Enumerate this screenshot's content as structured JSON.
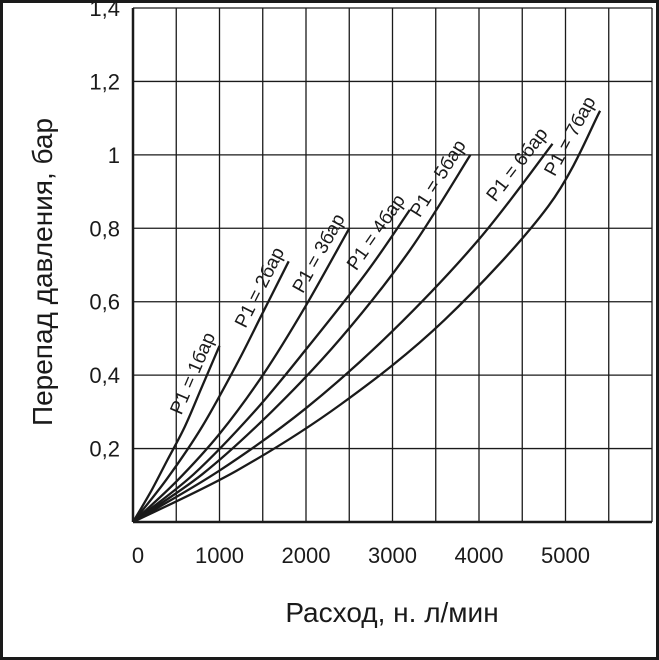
{
  "chart_data": {
    "type": "line",
    "title": "",
    "xlabel": "Расход, н. л/мин",
    "ylabel": "Перепад давления, бар",
    "xlim": [
      0,
      6000
    ],
    "ylim": [
      0,
      1.4
    ],
    "x_ticks": [
      0,
      1000,
      2000,
      3000,
      4000,
      5000
    ],
    "x_tick_labels": [
      "0",
      "1000",
      "2000",
      "3000",
      "4000",
      "5000"
    ],
    "y_ticks": [
      0.2,
      0.4,
      0.6,
      0.8,
      1,
      1.2,
      1.4
    ],
    "y_tick_labels": [
      "0,2",
      "0,4",
      "0,6",
      "0,8",
      "1",
      "1,2",
      "1,4"
    ],
    "grid": true,
    "legend": "none",
    "series": [
      {
        "name": "P1 = 1бар",
        "x": [
          0,
          200,
          400,
          600,
          800,
          1000
        ],
        "y": [
          0,
          0.08,
          0.17,
          0.26,
          0.37,
          0.48
        ]
      },
      {
        "name": "P1 = 2бар",
        "x": [
          0,
          400,
          800,
          1200,
          1500,
          1800
        ],
        "y": [
          0,
          0.12,
          0.26,
          0.43,
          0.57,
          0.71
        ]
      },
      {
        "name": "P1 = 3бар",
        "x": [
          0,
          500,
          1000,
          1500,
          2000,
          2500
        ],
        "y": [
          0,
          0.11,
          0.24,
          0.4,
          0.59,
          0.8
        ]
      },
      {
        "name": "P1 = 4бар",
        "x": [
          0,
          700,
          1400,
          2000,
          2700,
          3200
        ],
        "y": [
          0,
          0.13,
          0.3,
          0.47,
          0.68,
          0.85
        ]
      },
      {
        "name": "P1 = 5бар",
        "x": [
          0,
          800,
          1600,
          2400,
          3200,
          3900
        ],
        "y": [
          0,
          0.13,
          0.3,
          0.5,
          0.74,
          1.0
        ]
      },
      {
        "name": "P1 = 6бар",
        "x": [
          0,
          1000,
          2000,
          3000,
          4000,
          4850
        ],
        "y": [
          0,
          0.14,
          0.31,
          0.52,
          0.77,
          1.03
        ]
      },
      {
        "name": "P1 = 7бар",
        "x": [
          0,
          1200,
          2400,
          3600,
          4800,
          5400
        ],
        "y": [
          0,
          0.14,
          0.32,
          0.55,
          0.86,
          1.12
        ]
      }
    ]
  }
}
